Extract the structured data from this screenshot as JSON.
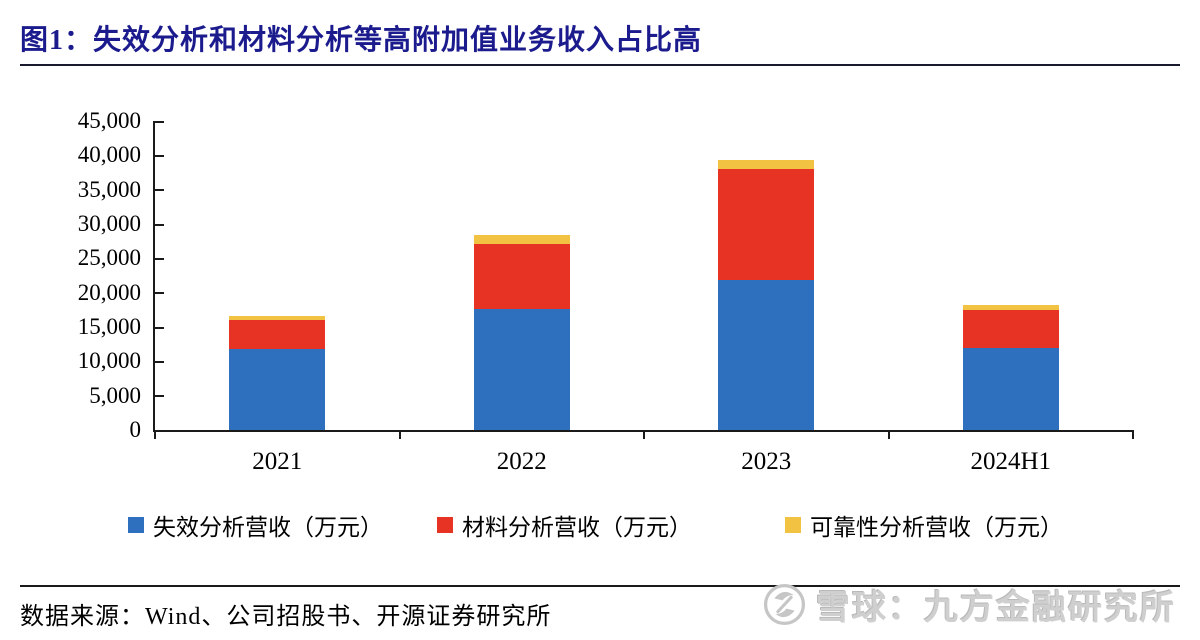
{
  "figure": {
    "title": "图1：失效分析和材料分析等高附加值业务收入占比高"
  },
  "chart_data": {
    "type": "bar",
    "stacked": true,
    "categories": [
      "2021",
      "2022",
      "2023",
      "2024H1"
    ],
    "series": [
      {
        "name": "失效分析营收（万元）",
        "color": "#2E6FBE",
        "values": [
          11750,
          17550,
          21900,
          11900
        ]
      },
      {
        "name": "材料分析营收（万元）",
        "color": "#E73323",
        "values": [
          4250,
          9600,
          16050,
          5550
        ]
      },
      {
        "name": "可靠性分析营收（万元）",
        "color": "#F2C243",
        "values": [
          550,
          1300,
          1300,
          730
        ]
      }
    ],
    "totals": [
      16550,
      28450,
      39250,
      18180
    ],
    "title": "",
    "xlabel": "",
    "ylabel": "",
    "ylim": [
      0,
      45000
    ],
    "yticks": [
      0,
      5000,
      10000,
      15000,
      20000,
      25000,
      30000,
      35000,
      40000,
      45000
    ],
    "grid": false,
    "legend_position": "bottom"
  },
  "footer": {
    "source": "数据来源：Wind、公司招股书、开源证券研究所"
  },
  "watermark": {
    "logo": "xueqiu-logo",
    "text": "雪球：九方金融研究所"
  },
  "colors": {
    "title": "#1B1B8E",
    "axis": "#1A1A1A",
    "bar_blue": "#2E6FBE",
    "bar_red": "#E73323",
    "bar_yellow": "#F2C243",
    "watermark_gray": "#CFCFCF"
  }
}
